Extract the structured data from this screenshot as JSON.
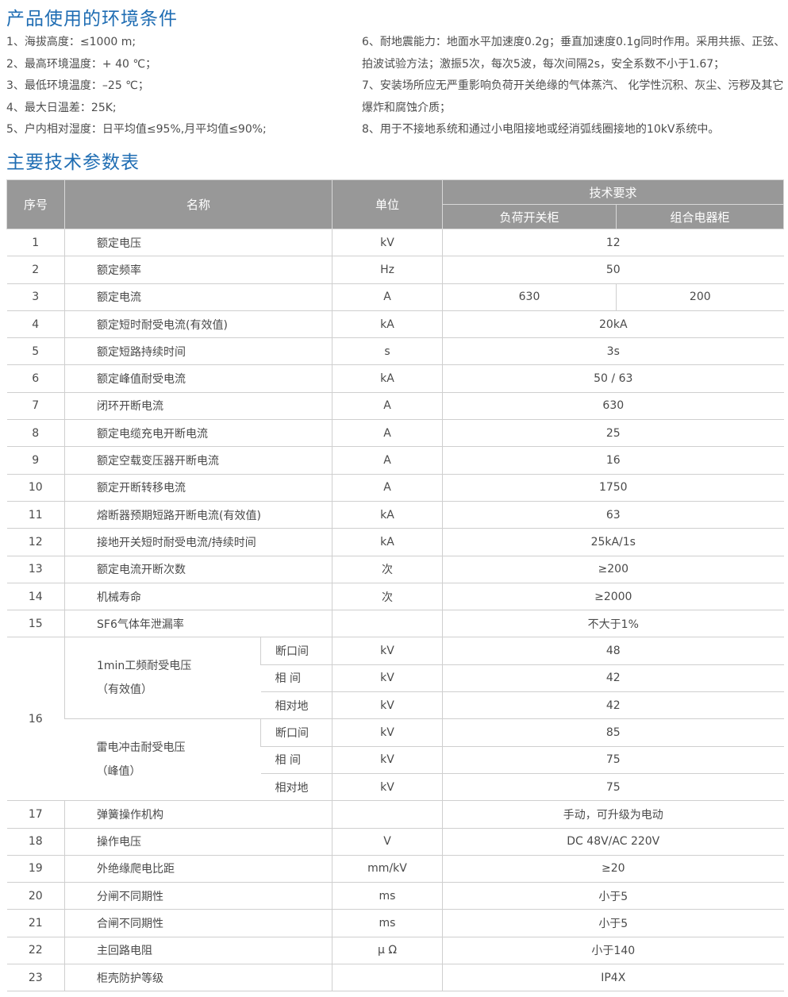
{
  "env_title": "产品使用的环境条件",
  "env_left": [
    "1、海拔高度：≤1000 m;",
    "2、最高环境温度：+ 40 ℃；",
    "3、最低环境温度：–25 ℃；",
    "4、最大日温差：25K;",
    "5、户内相对湿度：日平均值≤95%,月平均值≤90%;"
  ],
  "env_right": [
    "6、耐地震能力：地面水平加速度0.2g；垂直加速度0.1g同时作用。采用共振、正弦、拍波试验方法；激振5次，每次5波，每次间隔2s，安全系数不小于1.67；",
    "7、安装场所应无严重影响负荷开关绝缘的气体蒸汽、 化学性沉积、灰尘、污秽及其它爆炸和腐蚀介质；",
    "8、用于不接地系统和通过小电阻接地或经消弧线圈接地的10kV系统中。"
  ],
  "table_title": "主要技术参数表",
  "colors": {
    "title": "#1f6db3",
    "header_bg": "#989898"
  },
  "header": {
    "seq": "序号",
    "name": "名称",
    "unit": "单位",
    "tech": "技术要求",
    "col_a": "负荷开关柜",
    "col_b": "组合电器柜"
  },
  "rows": [
    {
      "seq": "1",
      "name": "额定电压",
      "unit": "kV",
      "value": "12"
    },
    {
      "seq": "2",
      "name": "额定频率",
      "unit": "Hz",
      "value": "50"
    },
    {
      "seq": "3",
      "name": "额定电流",
      "unit": "A",
      "value_a": "630",
      "value_b": "200"
    },
    {
      "seq": "4",
      "name": "额定短时耐受电流(有效值)",
      "unit": "kA",
      "value": "20kA"
    },
    {
      "seq": "5",
      "name": "额定短路持续时间",
      "unit": "s",
      "value": "3s"
    },
    {
      "seq": "6",
      "name": "额定峰值耐受电流",
      "unit": "kA",
      "value": "50 / 63"
    },
    {
      "seq": "7",
      "name": "闭环开断电流",
      "unit": "A",
      "value": "630"
    },
    {
      "seq": "8",
      "name": "额定电缆充电开断电流",
      "unit": "A",
      "value": "25"
    },
    {
      "seq": "9",
      "name": "额定空载变压器开断电流",
      "unit": "A",
      "value": "16"
    },
    {
      "seq": "10",
      "name": "额定开断转移电流",
      "unit": "A",
      "value": "1750"
    },
    {
      "seq": "11",
      "name": "熔断器预期短路开断电流(有效值)",
      "unit": "kA",
      "value": "63"
    },
    {
      "seq": "12",
      "name": "接地开关短时耐受电流/持续时间",
      "unit": "kA",
      "value": "25kA/1s"
    },
    {
      "seq": "13",
      "name": "额定电流开断次数",
      "unit": "次",
      "value": "≥200"
    },
    {
      "seq": "14",
      "name": "机械寿命",
      "unit": "次",
      "value": "≥2000"
    },
    {
      "seq": "15",
      "name": "SF6气体年泄漏率",
      "unit": "",
      "value": "不大于1%"
    },
    {
      "seq": "16",
      "groups": [
        {
          "name": "1min工频耐受电压",
          "note": "（有效值）",
          "items": [
            {
              "sub": "断口间",
              "unit": "kV",
              "value": "48"
            },
            {
              "sub": "相 间",
              "unit": "kV",
              "value": "42"
            },
            {
              "sub": "相对地",
              "unit": "kV",
              "value": "42"
            }
          ]
        },
        {
          "name": "雷电冲击耐受电压",
          "note": "（峰值）",
          "items": [
            {
              "sub": "断口间",
              "unit": "kV",
              "value": "85"
            },
            {
              "sub": "相 间",
              "unit": "kV",
              "value": "75"
            },
            {
              "sub": "相对地",
              "unit": "kV",
              "value": "75"
            }
          ]
        }
      ]
    },
    {
      "seq": "17",
      "name": "弹簧操作机构",
      "unit": "",
      "value": "手动，可升级为电动"
    },
    {
      "seq": "18",
      "name": "操作电压",
      "unit": "V",
      "value": "DC 48V/AC 220V"
    },
    {
      "seq": "19",
      "name": "外绝缘爬电比距",
      "unit": "mm/kV",
      "value": "≥20"
    },
    {
      "seq": "20",
      "name": "分闸不同期性",
      "unit": "ms",
      "value": "小于5"
    },
    {
      "seq": "21",
      "name": "合闸不同期性",
      "unit": "ms",
      "value": "小于5"
    },
    {
      "seq": "22",
      "name": "主回路电阻",
      "unit": "μ Ω",
      "value": "小于140"
    },
    {
      "seq": "23",
      "name": "柜壳防护等级",
      "unit": "",
      "value": "IP4X"
    }
  ]
}
